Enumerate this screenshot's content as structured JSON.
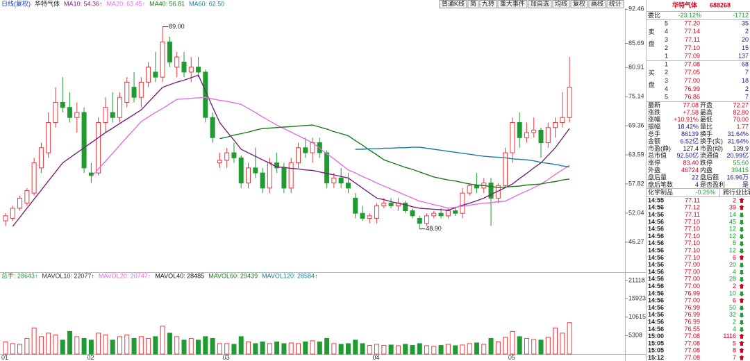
{
  "chart_data": {
    "type": "candlestick",
    "title": "日线(复权)",
    "stock": "华特气体",
    "up_color": "#e8383d",
    "down_color": "#1f9b31",
    "categories": [
      "01",
      null,
      null,
      null,
      null,
      null,
      null,
      null,
      null,
      null,
      null,
      null,
      "02",
      null,
      null,
      null,
      null,
      null,
      null,
      null,
      null,
      null,
      null,
      null,
      null,
      null,
      null,
      null,
      null,
      null,
      null,
      "03",
      null,
      null,
      null,
      null,
      null,
      null,
      null,
      null,
      null,
      null,
      null,
      null,
      null,
      null,
      null,
      null,
      null,
      null,
      null,
      null,
      "04",
      null,
      null,
      null,
      null,
      null,
      null,
      null,
      null,
      null,
      null,
      null,
      null,
      null,
      null,
      null,
      null,
      null,
      null,
      "05",
      null,
      null,
      null,
      null,
      null,
      null,
      null,
      null
    ],
    "open": [
      50.5,
      51,
      53,
      54,
      56,
      61,
      64,
      70,
      74,
      73,
      71,
      72,
      60,
      60,
      70,
      72,
      71,
      74,
      77,
      75,
      78,
      80,
      79,
      86,
      81,
      82,
      80,
      81,
      80,
      71,
      62,
      62.5,
      64,
      63,
      58,
      61,
      60,
      57,
      62,
      61,
      57,
      62,
      65,
      64,
      66,
      64,
      58,
      59,
      58,
      55,
      52,
      51,
      51,
      53.5,
      54,
      53.5,
      54,
      52.5,
      51,
      50,
      51.5,
      52,
      51.5,
      52.5,
      52,
      56,
      57.5,
      57,
      58,
      55,
      57.5,
      64,
      70,
      67,
      68,
      68.5,
      66,
      69,
      70,
      71
    ],
    "high": [
      52,
      53.5,
      55.5,
      57,
      63,
      66,
      72,
      77,
      79,
      76,
      74,
      73,
      62,
      71,
      75,
      76,
      76,
      79,
      80,
      79,
      82,
      84,
      89,
      87,
      84,
      84,
      83,
      83,
      80.5,
      72,
      64,
      65,
      66,
      63.5,
      62,
      65,
      61,
      63,
      64,
      62,
      63,
      66,
      67,
      67,
      67,
      64.5,
      60,
      61,
      60,
      56,
      53.5,
      52,
      54,
      55,
      55,
      55,
      54.5,
      53,
      51.5,
      52,
      52.5,
      53,
      53,
      53,
      57,
      58,
      60,
      59,
      59,
      58,
      65,
      71,
      72,
      70,
      71,
      69,
      70,
      71,
      76,
      83
    ],
    "low": [
      49.5,
      50.5,
      52.5,
      53.5,
      55.5,
      60,
      63,
      69,
      72,
      70,
      68,
      60,
      58,
      59.5,
      68,
      70,
      70,
      73,
      74,
      73,
      77,
      78,
      78,
      81,
      79,
      79,
      78,
      79,
      70,
      66,
      61,
      61,
      62,
      57,
      57,
      59,
      56,
      56,
      60,
      56,
      56,
      61,
      63,
      62,
      63,
      57,
      57,
      57,
      56,
      51,
      50.5,
      50,
      50,
      53,
      53,
      52.5,
      52,
      51,
      48.9,
      49.5,
      51,
      51,
      51,
      51.5,
      51,
      55.5,
      56,
      56,
      49.5,
      54,
      57,
      62,
      65,
      66,
      67,
      63,
      65,
      67,
      69,
      70
    ],
    "close": [
      51.5,
      53,
      55,
      56.5,
      62,
      65,
      70,
      74,
      73,
      71,
      72,
      61,
      59.5,
      70,
      73,
      71,
      75,
      78,
      75,
      78,
      81,
      79,
      86,
      82,
      83,
      80,
      81,
      80,
      71,
      67,
      62.5,
      64,
      63,
      58,
      61,
      60,
      57,
      62,
      61,
      57,
      62,
      65,
      64,
      66,
      64,
      58,
      59,
      58,
      57,
      52,
      51,
      51.5,
      53.5,
      54,
      53.5,
      54,
      52.5,
      51.5,
      50,
      51.5,
      52,
      51.5,
      52.5,
      52,
      56,
      57.5,
      57,
      58,
      55,
      57.5,
      64,
      70,
      67,
      68,
      68.5,
      66,
      69,
      70,
      71,
      77
    ],
    "series": [
      {
        "name": "MA10: 54.36↑",
        "color": "#7a1f7a",
        "values": [
          null,
          49.4,
          51.2,
          53.0,
          54.8,
          56.6,
          58.4,
          60.2,
          62.0,
          63.0,
          64.0,
          65.0,
          66.0,
          67.0,
          68.0,
          68.9,
          69.8,
          70.7,
          71.6,
          72.5,
          74.0,
          75.5,
          77.0,
          77.5,
          78.0,
          78.4,
          78.9,
          79.4,
          76.3,
          73.1,
          70.0,
          68.2,
          66.5,
          64.7,
          64.0,
          63.3,
          62.6,
          61.9,
          61.2,
          61.1,
          60.9,
          60.8,
          60.6,
          60.5,
          60.2,
          59.9,
          59.6,
          59.3,
          59.0,
          58.0,
          57.0,
          56.0,
          55.0,
          54.7,
          54.3,
          54.0,
          53.7,
          53.3,
          53.0,
          52.9,
          52.8,
          52.7,
          52.6,
          53.1,
          53.6,
          54.0,
          54.5,
          55.0,
          55.7,
          56.4,
          57.1,
          57.8,
          58.9,
          59.9,
          61.0,
          62.0,
          63.5,
          65.0,
          66.9,
          68.8
        ]
      },
      {
        "name": "MA20: 63.45↑",
        "color": "#e070e0",
        "values": [
          null,
          null,
          null,
          null,
          null,
          null,
          null,
          null,
          null,
          null,
          null,
          null,
          59.2,
          60.8,
          62.3,
          63.9,
          65.5,
          67.1,
          68.6,
          70.2,
          71.1,
          72.0,
          72.8,
          73.7,
          74.6,
          74.7,
          74.8,
          74.9,
          75.0,
          74.7,
          74.4,
          74.2,
          73.9,
          73.6,
          72.8,
          72.0,
          71.1,
          70.3,
          69.5,
          68.8,
          68.1,
          67.4,
          66.7,
          66.0,
          64.9,
          63.8,
          62.8,
          61.7,
          60.6,
          60.0,
          59.3,
          58.7,
          58.0,
          57.4,
          56.8,
          56.2,
          55.6,
          55.0,
          54.4,
          54.1,
          53.7,
          53.4,
          53.0,
          53.2,
          53.4,
          53.6,
          53.8,
          54.0,
          54.1,
          54.3,
          54.4,
          55.1,
          55.8,
          56.4,
          57.1,
          57.8,
          58.7,
          59.7,
          60.6,
          61.5
        ]
      },
      {
        "name": "MA40: 56.81",
        "color": "#1a7a1a",
        "values": [
          null,
          null,
          null,
          null,
          null,
          null,
          null,
          null,
          null,
          null,
          null,
          null,
          null,
          null,
          null,
          null,
          null,
          null,
          null,
          null,
          null,
          null,
          null,
          null,
          null,
          null,
          null,
          null,
          null,
          null,
          66.8,
          67.1,
          67.5,
          67.8,
          68.1,
          68.5,
          68.8,
          68.9,
          69.0,
          69.1,
          69.2,
          69.3,
          69.4,
          69.5,
          69.1,
          68.7,
          68.2,
          67.8,
          67.4,
          66.4,
          65.5,
          64.5,
          63.6,
          62.6,
          62.1,
          61.6,
          61.1,
          60.7,
          60.2,
          59.7,
          59.2,
          58.9,
          58.6,
          58.4,
          58.1,
          57.8,
          57.6,
          57.5,
          57.3,
          57.1,
          57.2,
          57.3,
          57.4,
          57.6,
          57.7,
          57.8,
          58.1,
          58.3,
          58.6,
          58.8
        ]
      },
      {
        "name": "MA60: 62.50",
        "color": "#1b7b96",
        "values": [
          null,
          null,
          null,
          null,
          null,
          null,
          null,
          null,
          null,
          null,
          null,
          null,
          null,
          null,
          null,
          null,
          null,
          null,
          null,
          null,
          null,
          null,
          null,
          null,
          null,
          null,
          null,
          null,
          null,
          null,
          null,
          null,
          null,
          null,
          null,
          null,
          null,
          null,
          null,
          null,
          null,
          null,
          null,
          null,
          null,
          null,
          null,
          null,
          null,
          64.7,
          64.7,
          64.8,
          64.8,
          64.9,
          64.9,
          65.0,
          65.0,
          65.1,
          65.1,
          64.9,
          64.7,
          64.5,
          64.3,
          64.1,
          63.9,
          63.7,
          63.5,
          63.3,
          63.2,
          63.1,
          63.0,
          62.8,
          62.7,
          62.6,
          62.4,
          62.1,
          61.9,
          61.7,
          61.4,
          61.2
        ]
      }
    ],
    "ylim": [
      40.6,
      93.2
    ],
    "yticks": [
      92.46,
      85.69,
      80.91,
      75.14,
      69.36,
      63.59,
      57.82,
      52.04,
      46.27
    ],
    "annotations": {
      "max": {
        "value": 89,
        "label": "89.00"
      },
      "min": {
        "value": 48.9,
        "label": "48.90"
      }
    },
    "toolbar": [
      "普通K线",
      "简",
      "九转",
      "重大事件",
      "加自选",
      "均线",
      "复权",
      "画线",
      "统计"
    ],
    "volume": {
      "values": [
        3500,
        3000,
        2800,
        4500,
        7500,
        5000,
        6000,
        5500,
        4000,
        6500,
        5000,
        4500,
        4000,
        6000,
        5500,
        4000,
        5000,
        5500,
        4500,
        5000,
        4500,
        5000,
        8000,
        6000,
        5000,
        4000,
        4500,
        4000,
        5000,
        4500,
        3000,
        3000,
        2800,
        5000,
        3500,
        3000,
        3500,
        3000,
        3500,
        3000,
        3200,
        3000,
        3500,
        3800,
        3500,
        4500,
        3000,
        2800,
        3000,
        4000,
        3000,
        2500,
        2800,
        2500,
        2600,
        2400,
        2800,
        2500,
        3000,
        2400,
        2200,
        2500,
        2800,
        2400,
        2600,
        3000,
        3200,
        2800,
        4500,
        3500,
        4800,
        6500,
        5000,
        4500,
        4200,
        4000,
        4800,
        7500,
        6000,
        9000
      ],
      "ylim": [
        0,
        22500
      ],
      "yticks": [
        21118,
        15923,
        10615,
        5308
      ],
      "legend": [
        {
          "text": "总手: 28643↑",
          "color": "#1f9b31"
        },
        {
          "text": "MAVOL10: 22077↑",
          "color": "#333333"
        },
        {
          "text": "MAVOL20: 20747↑",
          "color": "#e070e0"
        },
        {
          "text": "MAVOL40: 28485",
          "color": "#111111"
        },
        {
          "text": "MAVOL60: 29439",
          "color": "#1a7a1a"
        },
        {
          "text": "MAVOL120: 28584↑",
          "color": "#1b7b96"
        }
      ]
    }
  },
  "quote_panel": {
    "title": "华特气体",
    "code": "688268",
    "ratio": {
      "label": "委比",
      "percent": "-23.12%",
      "diff": "-1712"
    },
    "sell_label": "卖盘",
    "sell": [
      {
        "level": "5",
        "price": "77.20",
        "volume": "35"
      },
      {
        "level": "4",
        "price": "77.14",
        "volume": "2"
      },
      {
        "level": "3",
        "price": "77.11",
        "volume": "20"
      },
      {
        "level": "2",
        "price": "77.10",
        "volume": "15"
      },
      {
        "level": "1",
        "price": "77.09",
        "volume": "137"
      }
    ],
    "buy_label": "买盘",
    "buy": [
      {
        "level": "1",
        "price": "77.08",
        "volume": "68"
      },
      {
        "level": "2",
        "price": "77.05",
        "volume": "7"
      },
      {
        "level": "3",
        "price": "77.00",
        "volume": "18"
      },
      {
        "level": "4",
        "price": "76.99",
        "volume": "2"
      },
      {
        "level": "5",
        "price": "76.86",
        "volume": "7"
      }
    ],
    "stats": [
      [
        {
          "label": "最新",
          "value": "77.08",
          "color": "#e0001b"
        },
        {
          "label": "开盘",
          "value": "72.27",
          "color": "#e0001b"
        }
      ],
      [
        {
          "label": "涨跌",
          "value": "+7.58",
          "color": "#e0001b"
        },
        {
          "label": "最高",
          "value": "82.80",
          "color": "#e0001b"
        }
      ],
      [
        {
          "label": "涨幅",
          "value": "+10.91%",
          "color": "#e0001b"
        },
        {
          "label": "最低",
          "value": "70.00",
          "color": "#e0001b"
        }
      ],
      [
        {
          "label": "振幅",
          "value": "18.42%",
          "color": "#1a1a8c"
        },
        {
          "label": "量比",
          "value": "1.77",
          "color": "#e0001b"
        }
      ],
      [
        {
          "label": "总手",
          "value": "86139",
          "color": "#1a1a8c"
        },
        {
          "label": "换手",
          "value": "31.64%",
          "color": "#1a1a8c"
        }
      ],
      [
        {
          "label": "金额",
          "value": "6.52亿",
          "color": "#1a1a8c"
        },
        {
          "label": "换手(实)",
          "value": "31.64%",
          "color": "#1a1a8c"
        }
      ],
      [
        {
          "label": "市盈(静)",
          "value": "127.4",
          "color": "#111111"
        },
        {
          "label": "市盈(动)",
          "value": "139.9",
          "color": "#111111"
        }
      ],
      [
        {
          "label": "总市值",
          "value": "92.50亿",
          "color": "#1a1a8c"
        },
        {
          "label": "流通值",
          "value": "20.99亿",
          "color": "#1a1a8c"
        }
      ],
      [
        {
          "label": "涨停",
          "value": "83.40",
          "color": "#e0001b"
        },
        {
          "label": "跌停",
          "value": "55.60",
          "color": "#1f9b31"
        }
      ],
      [
        {
          "label": "外盘",
          "value": "46724",
          "color": "#e0001b"
        },
        {
          "label": "内盘",
          "value": "39415",
          "color": "#1f9b31"
        }
      ],
      [
        {
          "label": "盘后量",
          "value": "22",
          "color": "#1a1a8c"
        },
        {
          "label": "盘后额",
          "value": "16.96万",
          "color": "#1a1a8c"
        }
      ],
      [
        {
          "label": "盘后笔数",
          "value": "4",
          "color": "#1a1a8c"
        },
        {
          "label": "是否盈利",
          "value": "是",
          "color": "#1a1a8c"
        }
      ]
    ],
    "tabs": {
      "industry": "化学制品",
      "change": "-0.25%",
      "compare": "跨行业比较"
    },
    "ticks": [
      {
        "time": "14:55",
        "price": "77.11",
        "volume": "2",
        "dir": "up"
      },
      {
        "time": "14:56",
        "price": "77.12",
        "volume": "39",
        "dir": "up"
      },
      {
        "time": "14:56",
        "price": "77.11",
        "volume": "14",
        "dir": "down"
      },
      {
        "time": "14:56",
        "price": "77.10",
        "volume": "45",
        "dir": "down"
      },
      {
        "time": "14:56",
        "price": "77.10",
        "volume": "12",
        "dir": "down"
      },
      {
        "time": "14:56",
        "price": "77.10",
        "volume": "12",
        "dir": "down"
      },
      {
        "time": "14:56",
        "price": "77.10",
        "volume": "8",
        "dir": "down"
      },
      {
        "time": "14:56",
        "price": "77.10",
        "volume": "12",
        "dir": "down"
      },
      {
        "time": "14:56",
        "price": "77.10",
        "volume": "6",
        "dir": "up"
      },
      {
        "time": "14:56",
        "price": "77.00",
        "volume": "20",
        "dir": "down"
      },
      {
        "time": "14:56",
        "price": "77.00",
        "volume": "4",
        "dir": "down"
      },
      {
        "time": "14:56",
        "price": "77.00",
        "volume": "28",
        "dir": "down"
      },
      {
        "time": "14:56",
        "price": "77.00",
        "volume": "2",
        "dir": "up"
      },
      {
        "time": "14:56",
        "price": "76.99",
        "volume": "10",
        "dir": "down"
      },
      {
        "time": "14:56",
        "price": "77.00",
        "volume": "6",
        "dir": "up"
      },
      {
        "time": "14:56",
        "price": "76.99",
        "volume": "50",
        "dir": "down"
      },
      {
        "time": "14:56",
        "price": "76.99",
        "volume": "32",
        "dir": "down"
      },
      {
        "time": "14:56",
        "price": "76.99",
        "volume": "2",
        "dir": "down"
      },
      {
        "time": "14:56",
        "price": "76.55",
        "volume": "4",
        "dir": "down"
      },
      {
        "time": "15:00",
        "price": "77.08",
        "volume": "1116",
        "dir": "up"
      },
      {
        "time": "15:05",
        "price": "77.08",
        "volume": "5",
        "dir": "up"
      },
      {
        "time": "15:05",
        "price": "77.08",
        "volume": "8",
        "dir": "up"
      },
      {
        "time": "15:12",
        "price": "77.08",
        "volume": "7",
        "dir": "up"
      }
    ]
  }
}
